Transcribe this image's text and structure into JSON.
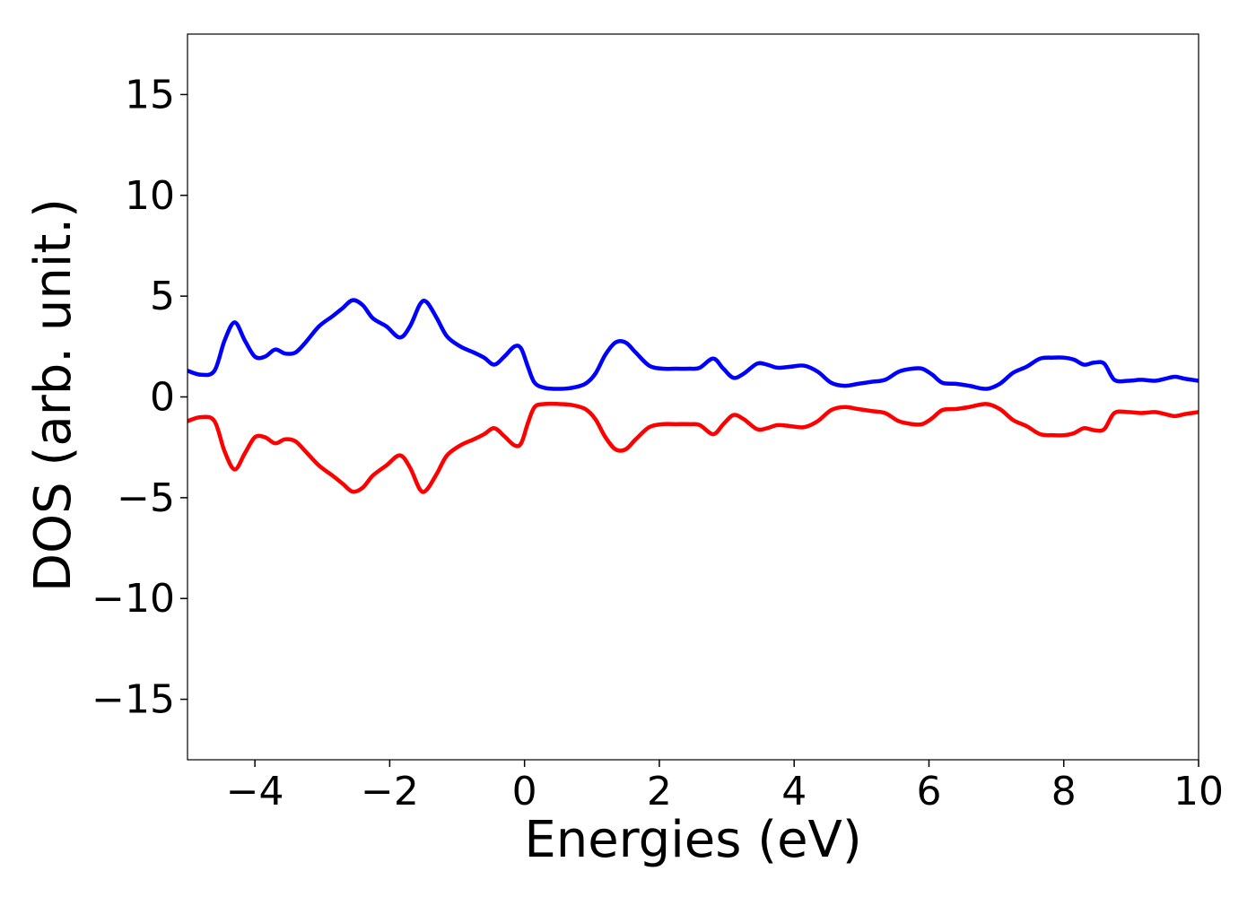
{
  "chart_data": {
    "type": "line",
    "title": "",
    "xlabel": "Energies (eV)",
    "ylabel": "DOS (arb. unit.)",
    "xlim": [
      -5,
      10
    ],
    "ylim": [
      -18,
      18
    ],
    "grid": false,
    "x_ticks": [
      -4,
      -2,
      0,
      2,
      4,
      6,
      8,
      10
    ],
    "x_tick_labels": [
      "−4",
      "−2",
      "0",
      "2",
      "4",
      "6",
      "8",
      "10"
    ],
    "y_ticks": [
      15,
      10,
      5,
      0,
      -5,
      -10,
      -15
    ],
    "y_tick_labels": [
      "15",
      "10",
      "5",
      "0",
      "−5",
      "−10",
      "−15"
    ],
    "series": [
      {
        "color": "#0000ff",
        "x": [
          -5.0,
          -4.8,
          -4.6,
          -4.45,
          -4.3,
          -4.15,
          -4.0,
          -3.85,
          -3.7,
          -3.55,
          -3.4,
          -3.25,
          -3.05,
          -2.85,
          -2.7,
          -2.55,
          -2.4,
          -2.25,
          -2.05,
          -1.85,
          -1.7,
          -1.55,
          -1.45,
          -1.3,
          -1.15,
          -0.95,
          -0.75,
          -0.6,
          -0.45,
          -0.3,
          -0.15,
          -0.05,
          0.05,
          0.15,
          0.3,
          0.5,
          0.7,
          0.9,
          1.05,
          1.2,
          1.35,
          1.5,
          1.65,
          1.85,
          2.05,
          2.25,
          2.45,
          2.6,
          2.8,
          2.95,
          3.1,
          3.25,
          3.45,
          3.6,
          3.75,
          3.95,
          4.15,
          4.35,
          4.55,
          4.75,
          4.95,
          5.15,
          5.35,
          5.55,
          5.75,
          5.9,
          6.05,
          6.2,
          6.4,
          6.6,
          6.85,
          7.05,
          7.25,
          7.45,
          7.65,
          7.85,
          8.0,
          8.15,
          8.3,
          8.45,
          8.6,
          8.75,
          8.95,
          9.15,
          9.35,
          9.5,
          9.65,
          9.8,
          10.0
        ],
        "y": [
          1.3,
          1.1,
          1.3,
          2.8,
          3.7,
          2.8,
          2.0,
          2.0,
          2.35,
          2.15,
          2.2,
          2.7,
          3.5,
          4.0,
          4.4,
          4.8,
          4.55,
          3.9,
          3.5,
          2.95,
          3.5,
          4.6,
          4.7,
          3.9,
          3.0,
          2.5,
          2.2,
          1.95,
          1.6,
          2.0,
          2.5,
          2.4,
          1.5,
          0.7,
          0.45,
          0.4,
          0.45,
          0.65,
          1.15,
          2.1,
          2.7,
          2.7,
          2.2,
          1.55,
          1.4,
          1.4,
          1.4,
          1.45,
          1.9,
          1.4,
          0.95,
          1.15,
          1.65,
          1.6,
          1.45,
          1.5,
          1.55,
          1.25,
          0.7,
          0.55,
          0.65,
          0.75,
          0.85,
          1.25,
          1.4,
          1.4,
          1.1,
          0.7,
          0.65,
          0.55,
          0.4,
          0.65,
          1.2,
          1.5,
          1.9,
          1.95,
          1.95,
          1.85,
          1.6,
          1.7,
          1.65,
          0.85,
          0.8,
          0.85,
          0.8,
          0.9,
          1.0,
          0.9,
          0.8
        ]
      },
      {
        "color": "#ff0000",
        "x": [
          -5.0,
          -4.8,
          -4.6,
          -4.45,
          -4.3,
          -4.15,
          -4.0,
          -3.85,
          -3.7,
          -3.55,
          -3.4,
          -3.25,
          -3.05,
          -2.85,
          -2.7,
          -2.55,
          -2.4,
          -2.25,
          -2.05,
          -1.85,
          -1.7,
          -1.55,
          -1.45,
          -1.3,
          -1.15,
          -0.95,
          -0.75,
          -0.6,
          -0.45,
          -0.3,
          -0.15,
          -0.05,
          0.05,
          0.15,
          0.3,
          0.5,
          0.7,
          0.9,
          1.05,
          1.2,
          1.35,
          1.5,
          1.65,
          1.85,
          2.05,
          2.25,
          2.45,
          2.6,
          2.8,
          2.95,
          3.1,
          3.25,
          3.45,
          3.6,
          3.75,
          3.95,
          4.15,
          4.35,
          4.55,
          4.75,
          4.95,
          5.15,
          5.35,
          5.55,
          5.75,
          5.9,
          6.05,
          6.2,
          6.4,
          6.6,
          6.85,
          7.05,
          7.25,
          7.45,
          7.65,
          7.85,
          8.0,
          8.15,
          8.3,
          8.45,
          8.6,
          8.75,
          8.95,
          9.15,
          9.35,
          9.5,
          9.65,
          9.8,
          10.0
        ],
        "y": [
          -1.2,
          -1.0,
          -1.2,
          -2.7,
          -3.6,
          -2.8,
          -2.0,
          -2.0,
          -2.3,
          -2.1,
          -2.2,
          -2.7,
          -3.4,
          -3.9,
          -4.3,
          -4.7,
          -4.5,
          -3.9,
          -3.4,
          -2.9,
          -3.5,
          -4.6,
          -4.6,
          -3.8,
          -2.9,
          -2.4,
          -2.1,
          -1.85,
          -1.55,
          -1.95,
          -2.4,
          -2.3,
          -1.3,
          -0.5,
          -0.35,
          -0.35,
          -0.4,
          -0.6,
          -1.1,
          -2.0,
          -2.6,
          -2.6,
          -2.1,
          -1.5,
          -1.35,
          -1.35,
          -1.35,
          -1.4,
          -1.85,
          -1.35,
          -0.9,
          -1.1,
          -1.6,
          -1.55,
          -1.4,
          -1.45,
          -1.5,
          -1.2,
          -0.65,
          -0.5,
          -0.6,
          -0.7,
          -0.8,
          -1.2,
          -1.35,
          -1.35,
          -1.05,
          -0.65,
          -0.6,
          -0.5,
          -0.35,
          -0.6,
          -1.15,
          -1.45,
          -1.85,
          -1.9,
          -1.9,
          -1.8,
          -1.55,
          -1.65,
          -1.6,
          -0.8,
          -0.75,
          -0.8,
          -0.75,
          -0.85,
          -0.95,
          -0.85,
          -0.75
        ]
      }
    ]
  }
}
